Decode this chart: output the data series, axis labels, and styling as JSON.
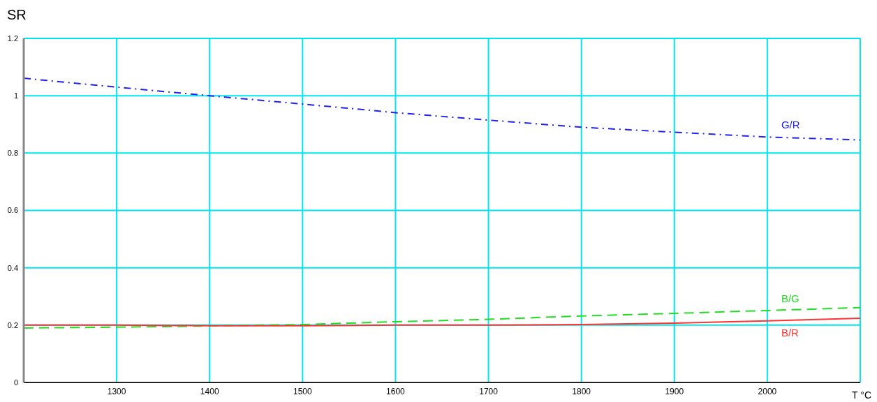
{
  "chart_data": {
    "type": "line",
    "ylabel": "SR",
    "xlabel": "T °C",
    "x": [
      1200,
      1300,
      1400,
      1500,
      1600,
      1700,
      1800,
      1900,
      2000,
      2100
    ],
    "series": [
      {
        "name": "G/R",
        "color": "#2222ee",
        "line_style": "dotted",
        "values": [
          1.061,
          1.03,
          1.0,
          0.971,
          0.941,
          0.915,
          0.89,
          0.873,
          0.856,
          0.846
        ]
      },
      {
        "name": "B/G",
        "color": "#22dd22",
        "line_style": "dashed",
        "values": [
          0.19,
          0.193,
          0.197,
          0.202,
          0.212,
          0.22,
          0.232,
          0.241,
          0.251,
          0.261
        ]
      },
      {
        "name": "B/R",
        "color": "#ff3333",
        "line_style": "solid",
        "values": [
          0.2,
          0.2,
          0.198,
          0.198,
          0.2,
          0.2,
          0.202,
          0.207,
          0.215,
          0.224
        ]
      }
    ],
    "xlim": [
      1200,
      2100
    ],
    "xticks": [
      1300,
      1400,
      1500,
      1600,
      1700,
      1800,
      1900,
      2000
    ],
    "ylim": [
      0,
      1.2
    ],
    "yticks": [
      0,
      0.2,
      0.4,
      0.6,
      0.8,
      1,
      1.2
    ],
    "grid": true,
    "marker": "none"
  }
}
